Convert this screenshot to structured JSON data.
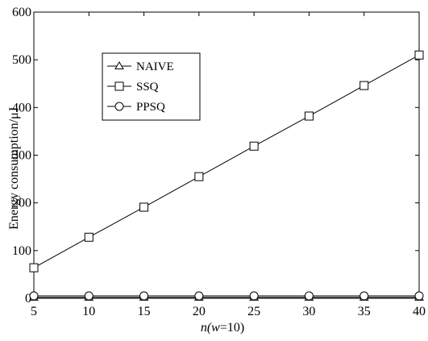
{
  "chart_data": {
    "type": "line",
    "title": "",
    "xlabel_parts": {
      "pre": "n(",
      "var": "w",
      "post": "=10)"
    },
    "ylabel": "Energy consumption/μJ",
    "x": [
      5,
      10,
      15,
      20,
      25,
      30,
      35,
      40
    ],
    "xlim": [
      5,
      40
    ],
    "ylim": [
      0,
      600
    ],
    "xticks": [
      "5",
      "10",
      "15",
      "20",
      "25",
      "30",
      "35",
      "40"
    ],
    "yticks": [
      "0",
      "100",
      "200",
      "300",
      "400",
      "500",
      "600"
    ],
    "grid": false,
    "legend_position": "top-left",
    "series": [
      {
        "name": "NAIVE",
        "marker": "triangle",
        "values": [
          2,
          2,
          2,
          2,
          2,
          2,
          2,
          2
        ]
      },
      {
        "name": "SSQ",
        "marker": "square",
        "values": [
          64,
          128,
          191,
          255,
          319,
          382,
          446,
          510
        ]
      },
      {
        "name": "PPSQ",
        "marker": "circle",
        "values": [
          5,
          5,
          5,
          5,
          5,
          5,
          5,
          5
        ]
      }
    ]
  }
}
